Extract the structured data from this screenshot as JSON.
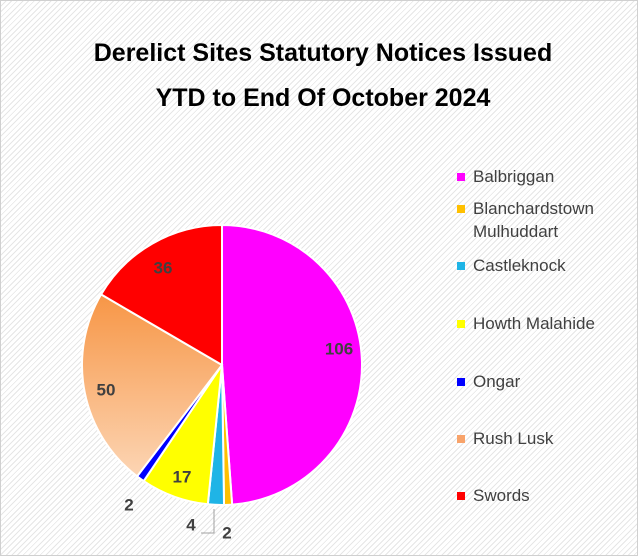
{
  "chart_data": {
    "type": "pie",
    "title": "Derelict Sites Statutory Notices Issued YTD to End Of October 2024",
    "categories": [
      "Balbriggan",
      "Blanchardstown Mulhuddart",
      "Castleknock",
      "Howth Malahide",
      "Ongar",
      "Rush Lusk",
      "Swords"
    ],
    "values": [
      106,
      2,
      4,
      17,
      2,
      50,
      36
    ],
    "colors": [
      "#ff00ff",
      "#ffc000",
      "#1fb4e6",
      "#ffff00",
      "#0000ff",
      "#f79646",
      "#ff0000"
    ],
    "legend": "right"
  }
}
